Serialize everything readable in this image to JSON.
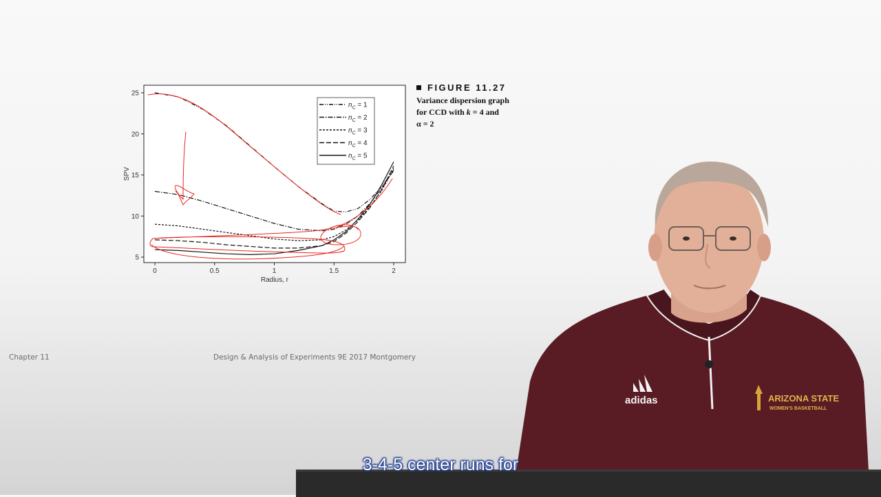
{
  "chart_data": {
    "type": "line",
    "xlabel": "Radius, r",
    "ylabel": "SPV",
    "xlim": [
      0,
      2
    ],
    "ylim": [
      5,
      25
    ],
    "xticks": [
      {
        "v": 0,
        "label": "0"
      },
      {
        "v": 0.5,
        "label": "0.5"
      },
      {
        "v": 1,
        "label": "1"
      },
      {
        "v": 1.5,
        "label": "1.5"
      },
      {
        "v": 2,
        "label": "2"
      }
    ],
    "yticks": [
      {
        "v": 5,
        "label": "5"
      },
      {
        "v": 10,
        "label": "10"
      },
      {
        "v": 15,
        "label": "15"
      },
      {
        "v": 20,
        "label": "20"
      },
      {
        "v": 25,
        "label": "25"
      }
    ],
    "legend_position": "top-right",
    "series": [
      {
        "name": "n_C = 1",
        "legend_main": "n",
        "legend_sub": "C",
        "legend_rest": " = 1",
        "dash": "6,2,1,2,1,2",
        "points": [
          [
            0,
            25
          ],
          [
            0.2,
            24.5
          ],
          [
            0.4,
            23
          ],
          [
            0.6,
            21
          ],
          [
            0.8,
            18.5
          ],
          [
            1.0,
            16
          ],
          [
            1.2,
            13.6
          ],
          [
            1.4,
            11.5
          ],
          [
            1.5,
            10.6
          ],
          [
            1.6,
            10.5
          ],
          [
            1.7,
            10.9
          ],
          [
            1.8,
            12
          ],
          [
            1.9,
            13.6
          ],
          [
            2.0,
            15.5
          ]
        ]
      },
      {
        "name": "n_C = 2",
        "legend_main": "n",
        "legend_sub": "C",
        "legend_rest": " = 2",
        "dash": "7,2,1.5,2",
        "points": [
          [
            0,
            13
          ],
          [
            0.2,
            12.6
          ],
          [
            0.4,
            11.8
          ],
          [
            0.6,
            10.9
          ],
          [
            0.8,
            10
          ],
          [
            1.0,
            9.1
          ],
          [
            1.2,
            8.4
          ],
          [
            1.4,
            8.2
          ],
          [
            1.5,
            8.4
          ],
          [
            1.6,
            9
          ],
          [
            1.7,
            10
          ],
          [
            1.8,
            11.5
          ],
          [
            1.9,
            13.4
          ],
          [
            2.0,
            15.6
          ]
        ]
      },
      {
        "name": "n_C = 3",
        "legend_main": "n",
        "legend_sub": "C",
        "legend_rest": " = 3",
        "dash": "3,2",
        "points": [
          [
            0,
            9
          ],
          [
            0.2,
            8.8
          ],
          [
            0.4,
            8.4
          ],
          [
            0.6,
            8
          ],
          [
            0.8,
            7.6
          ],
          [
            1.0,
            7.2
          ],
          [
            1.2,
            7
          ],
          [
            1.4,
            7.1
          ],
          [
            1.5,
            7.5
          ],
          [
            1.6,
            8.3
          ],
          [
            1.7,
            9.5
          ],
          [
            1.8,
            11.1
          ],
          [
            1.9,
            13.1
          ],
          [
            2.0,
            15.8
          ]
        ]
      },
      {
        "name": "n_C = 4",
        "legend_main": "n",
        "legend_sub": "C",
        "legend_rest": " = 4",
        "dash": "7,3",
        "points": [
          [
            0,
            7.1
          ],
          [
            0.2,
            7
          ],
          [
            0.4,
            6.8
          ],
          [
            0.6,
            6.5
          ],
          [
            0.8,
            6.3
          ],
          [
            1.0,
            6.1
          ],
          [
            1.2,
            6.1
          ],
          [
            1.4,
            6.4
          ],
          [
            1.5,
            6.9
          ],
          [
            1.6,
            7.9
          ],
          [
            1.7,
            9.3
          ],
          [
            1.8,
            11
          ],
          [
            1.9,
            13.2
          ],
          [
            2.0,
            16.1
          ]
        ]
      },
      {
        "name": "n_C = 5",
        "legend_main": "n",
        "legend_sub": "C",
        "legend_rest": " = 5",
        "dash": "",
        "points": [
          [
            0,
            5.9
          ],
          [
            0.2,
            5.8
          ],
          [
            0.4,
            5.6
          ],
          [
            0.6,
            5.4
          ],
          [
            0.8,
            5.3
          ],
          [
            1.0,
            5.4
          ],
          [
            1.2,
            5.8
          ],
          [
            1.4,
            6.4
          ],
          [
            1.5,
            7.1
          ],
          [
            1.6,
            8.1
          ],
          [
            1.7,
            9.6
          ],
          [
            1.8,
            11.4
          ],
          [
            1.9,
            13.8
          ],
          [
            2.0,
            16.6
          ]
        ]
      }
    ]
  },
  "caption": {
    "heading": "FIGURE 11.27",
    "line1": "Variance dispersion graph",
    "line2_pre": "for CCD with ",
    "line2_var": "k",
    "line2_post": " = 4 and",
    "line3": "α = 2"
  },
  "footer": {
    "left": "Chapter 11",
    "center": "Design & Analysis of Experiments 9E 2017 Montgomery"
  },
  "presenter": {
    "logo": "adidas",
    "shirt_line1": "ARIZONA STATE",
    "shirt_line2": "WOMEN'S BASKETBALL"
  },
  "subtitle": "3-4-5 center runs for",
  "colors": {
    "annotation": "#e8261e",
    "shirt": "#5a1c24",
    "subtitle_outline": "#1c3a8c"
  }
}
